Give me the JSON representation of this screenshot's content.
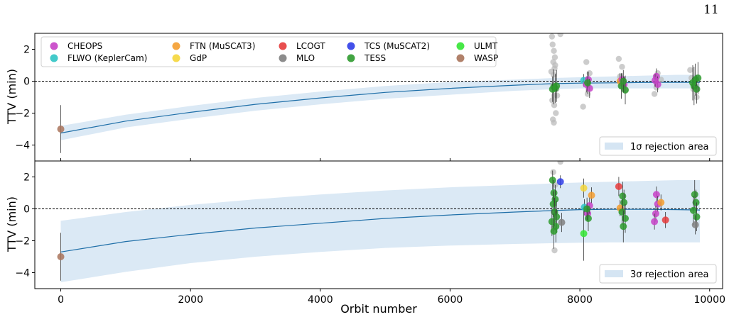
{
  "page_number": "11",
  "chart_data": {
    "type": "scatter",
    "xlabel": "Orbit number",
    "ylabel": "TTV (min)",
    "xlim": [
      -400,
      10200
    ],
    "x_ticks": [
      0,
      2000,
      4000,
      6000,
      8000,
      10000
    ],
    "shared_x": true,
    "colors": {
      "CHEOPS": "#c742c7",
      "FLWO (KeplerCam)": "#2fc4c4",
      "FTN (MuSCAT3)": "#f49d2f",
      "GdP": "#f5d63a",
      "LCOGT": "#e63b3b",
      "MLO": "#808080",
      "TCS (MuSCAT2)": "#2f3de8",
      "TESS": "#2d9a2d",
      "ULMT": "#33e633",
      "WASP": "#a9735a",
      "rejected": "#bbbbbb",
      "model": "#1f6fa8",
      "band": "#d5e5f3"
    },
    "panels": [
      {
        "id": "top",
        "ylim": [
          -5,
          3
        ],
        "y_ticks": [
          2,
          0,
          -2,
          -4
        ],
        "rejection_label": "1σ rejection area",
        "legend": [
          [
            "CHEOPS",
            "FTN (MuSCAT3)",
            "LCOGT",
            "TCS (MuSCAT2)",
            "ULMT"
          ],
          [
            "FLWO (KeplerCam)",
            "GdP",
            "MLO",
            "TESS",
            "WASP"
          ]
        ],
        "model": {
          "x": [
            0,
            1000,
            2000,
            3000,
            4000,
            5000,
            6000,
            7000,
            7600,
            8000,
            8500,
            9000,
            9500,
            9850
          ],
          "y": [
            -3.25,
            -2.5,
            -1.95,
            -1.45,
            -1.05,
            -0.7,
            -0.45,
            -0.25,
            -0.15,
            -0.12,
            -0.1,
            -0.08,
            -0.07,
            -0.07
          ]
        },
        "band": {
          "x": [
            0,
            1000,
            2000,
            3000,
            4000,
            5000,
            6000,
            7000,
            7600,
            8000,
            8500,
            9000,
            9500,
            9850
          ],
          "lower": [
            -3.7,
            -2.9,
            -2.35,
            -1.85,
            -1.45,
            -1.1,
            -0.85,
            -0.6,
            -0.5,
            -0.45,
            -0.45,
            -0.45,
            -0.45,
            -0.45
          ],
          "upper": [
            -2.8,
            -2.1,
            -1.55,
            -1.05,
            -0.65,
            -0.3,
            -0.05,
            0.1,
            0.2,
            0.25,
            0.3,
            0.35,
            0.4,
            0.4
          ]
        },
        "rejected": {
          "x": [
            7580,
            7600,
            7620,
            7560,
            7610,
            7590,
            7640,
            7575,
            7605,
            7630,
            7585,
            7650,
            7595,
            7570,
            7615,
            7600,
            7700,
            8100,
            8120,
            8050,
            8150,
            8600,
            8650,
            8700,
            8620,
            8680,
            9150,
            9200,
            9180,
            9250,
            9700,
            9750,
            9800,
            9720,
            7590,
            7605
          ],
          "y": [
            2.3,
            1.9,
            1.0,
            0.6,
            0.8,
            -0.2,
            -0.5,
            -1.2,
            -1.5,
            -2.0,
            -2.4,
            -0.9,
            0.4,
            2.8,
            1.5,
            -2.6,
            2.95,
            1.2,
            -0.8,
            -1.6,
            0.5,
            1.4,
            0.9,
            -0.6,
            0.3,
            -0.3,
            -0.8,
            0.5,
            -0.4,
            0.1,
            0.7,
            -0.5,
            -1.0,
            0.2,
            1.2,
            -0.9
          ]
        },
        "points": [
          {
            "inst": "WASP",
            "x": 0,
            "y": -3.0,
            "err": 1.5
          },
          {
            "inst": "TESS",
            "x": 7600,
            "y": -0.35,
            "err": 1.1
          },
          {
            "inst": "TESS",
            "x": 7620,
            "y": -0.45,
            "err": 0.9
          },
          {
            "inst": "TESS",
            "x": 7640,
            "y": -0.3,
            "err": 1.0
          },
          {
            "inst": "TESS",
            "x": 7580,
            "y": -0.5,
            "err": 0.8
          },
          {
            "inst": "FLWO (KeplerCam)",
            "x": 8060,
            "y": 0.05,
            "err": 0.4
          },
          {
            "inst": "CHEOPS",
            "x": 8100,
            "y": -0.2,
            "err": 0.5
          },
          {
            "inst": "CHEOPS",
            "x": 8130,
            "y": 0.1,
            "err": 0.5
          },
          {
            "inst": "CHEOPS",
            "x": 8150,
            "y": -0.45,
            "err": 0.6
          },
          {
            "inst": "TESS",
            "x": 8120,
            "y": -0.1,
            "err": 0.7
          },
          {
            "inst": "FTN (MuSCAT3)",
            "x": 8620,
            "y": 0.0,
            "err": 0.5
          },
          {
            "inst": "CHEOPS",
            "x": 8650,
            "y": 0.1,
            "err": 0.4
          },
          {
            "inst": "CHEOPS",
            "x": 8680,
            "y": -0.2,
            "err": 0.5
          },
          {
            "inst": "TESS",
            "x": 8640,
            "y": -0.3,
            "err": 0.8
          },
          {
            "inst": "TESS",
            "x": 8700,
            "y": -0.55,
            "err": 0.9
          },
          {
            "inst": "TESS",
            "x": 8670,
            "y": 0.0,
            "err": 0.7
          },
          {
            "inst": "CHEOPS",
            "x": 9180,
            "y": 0.3,
            "err": 0.5
          },
          {
            "inst": "CHEOPS",
            "x": 9200,
            "y": -0.2,
            "err": 0.5
          },
          {
            "inst": "CHEOPS",
            "x": 9160,
            "y": 0.05,
            "err": 0.4
          },
          {
            "inst": "TESS",
            "x": 9760,
            "y": -0.3,
            "err": 1.2
          },
          {
            "inst": "TESS",
            "x": 9780,
            "y": 0.1,
            "err": 1.0
          },
          {
            "inst": "TESS",
            "x": 9800,
            "y": -0.5,
            "err": 0.9
          },
          {
            "inst": "TESS",
            "x": 9740,
            "y": -0.1,
            "err": 1.1
          },
          {
            "inst": "TESS",
            "x": 9820,
            "y": 0.2,
            "err": 1.0
          }
        ]
      },
      {
        "id": "bottom",
        "ylim": [
          -5,
          3
        ],
        "y_ticks": [
          2,
          0,
          -2,
          -4
        ],
        "rejection_label": "3σ rejection area",
        "model": {
          "x": [
            0,
            1000,
            2000,
            3000,
            4000,
            5000,
            6000,
            7000,
            7600,
            8000,
            8500,
            9000,
            9500,
            9850
          ],
          "y": [
            -2.7,
            -2.05,
            -1.6,
            -1.2,
            -0.9,
            -0.6,
            -0.38,
            -0.2,
            -0.1,
            -0.05,
            -0.03,
            -0.03,
            -0.05,
            -0.07
          ]
        },
        "band": {
          "x": [
            0,
            1000,
            2000,
            3000,
            4000,
            5000,
            6000,
            7000,
            7600,
            8000,
            8500,
            9000,
            9500,
            9850
          ],
          "lower": [
            -4.6,
            -3.95,
            -3.4,
            -3.0,
            -2.7,
            -2.45,
            -2.3,
            -2.2,
            -2.15,
            -2.12,
            -2.1,
            -2.1,
            -2.1,
            -2.1
          ],
          "upper": [
            -0.75,
            -0.2,
            0.25,
            0.6,
            0.9,
            1.15,
            1.35,
            1.5,
            1.6,
            1.65,
            1.7,
            1.75,
            1.8,
            1.8
          ]
        },
        "rejected": {
          "x": [
            7590,
            7610,
            7600,
            7700,
            7620
          ],
          "y": [
            2.3,
            -2.6,
            -1.2,
            2.95,
            1.5
          ]
        },
        "points": [
          {
            "inst": "WASP",
            "x": 0,
            "y": -3.0,
            "err": 1.5
          },
          {
            "inst": "TESS",
            "x": 7580,
            "y": 1.8,
            "err": 0.6
          },
          {
            "inst": "TESS",
            "x": 7600,
            "y": 1.0,
            "err": 0.8
          },
          {
            "inst": "TESS",
            "x": 7620,
            "y": 0.6,
            "err": 0.9
          },
          {
            "inst": "TESS",
            "x": 7590,
            "y": 0.3,
            "err": 0.8
          },
          {
            "inst": "TESS",
            "x": 7610,
            "y": -0.2,
            "err": 0.9
          },
          {
            "inst": "TESS",
            "x": 7640,
            "y": -0.5,
            "err": 1.0
          },
          {
            "inst": "TESS",
            "x": 7570,
            "y": -0.8,
            "err": 0.9
          },
          {
            "inst": "TESS",
            "x": 7630,
            "y": -1.1,
            "err": 1.0
          },
          {
            "inst": "TESS",
            "x": 7600,
            "y": -1.4,
            "err": 1.1
          },
          {
            "inst": "TCS (MuSCAT2)",
            "x": 7700,
            "y": 1.7,
            "err": 0.4
          },
          {
            "inst": "MLO",
            "x": 7720,
            "y": -0.85,
            "err": 0.6
          },
          {
            "inst": "ULMT",
            "x": 8060,
            "y": -1.55,
            "err": 1.7
          },
          {
            "inst": "GdP",
            "x": 8060,
            "y": 1.3,
            "err": 0.6
          },
          {
            "inst": "FLWO (KeplerCam)",
            "x": 8070,
            "y": 0.1,
            "err": 0.5
          },
          {
            "inst": "FTN (MuSCAT3)",
            "x": 8180,
            "y": 0.85,
            "err": 0.5
          },
          {
            "inst": "CHEOPS",
            "x": 8120,
            "y": -0.3,
            "err": 0.5
          },
          {
            "inst": "CHEOPS",
            "x": 8150,
            "y": 0.2,
            "err": 0.5
          },
          {
            "inst": "TESS",
            "x": 8130,
            "y": -0.6,
            "err": 0.8
          },
          {
            "inst": "TESS",
            "x": 8110,
            "y": 0.0,
            "err": 0.7
          },
          {
            "inst": "LCOGT",
            "x": 8600,
            "y": 1.4,
            "err": 0.6
          },
          {
            "inst": "FTN (MuSCAT3)",
            "x": 8620,
            "y": 0.05,
            "err": 0.5
          },
          {
            "inst": "TESS",
            "x": 8660,
            "y": 0.8,
            "err": 0.9
          },
          {
            "inst": "TESS",
            "x": 8680,
            "y": 0.4,
            "err": 0.8
          },
          {
            "inst": "TESS",
            "x": 8650,
            "y": -0.2,
            "err": 0.8
          },
          {
            "inst": "TESS",
            "x": 8700,
            "y": -0.6,
            "err": 0.9
          },
          {
            "inst": "TESS",
            "x": 8670,
            "y": -1.1,
            "err": 1.0
          },
          {
            "inst": "CHEOPS",
            "x": 9180,
            "y": 0.9,
            "err": 0.5
          },
          {
            "inst": "CHEOPS",
            "x": 9200,
            "y": 0.3,
            "err": 0.5
          },
          {
            "inst": "CHEOPS",
            "x": 9170,
            "y": -0.3,
            "err": 0.5
          },
          {
            "inst": "CHEOPS",
            "x": 9150,
            "y": -0.8,
            "err": 0.5
          },
          {
            "inst": "FTN (MuSCAT3)",
            "x": 9250,
            "y": 0.4,
            "err": 0.5
          },
          {
            "inst": "LCOGT",
            "x": 9320,
            "y": -0.7,
            "err": 0.5
          },
          {
            "inst": "TESS",
            "x": 9770,
            "y": 0.9,
            "err": 0.9
          },
          {
            "inst": "TESS",
            "x": 9790,
            "y": 0.4,
            "err": 0.8
          },
          {
            "inst": "TESS",
            "x": 9750,
            "y": -0.1,
            "err": 0.9
          },
          {
            "inst": "TESS",
            "x": 9800,
            "y": -0.5,
            "err": 0.9
          },
          {
            "inst": "MLO",
            "x": 9780,
            "y": -1.0,
            "err": 0.6
          }
        ]
      }
    ]
  }
}
